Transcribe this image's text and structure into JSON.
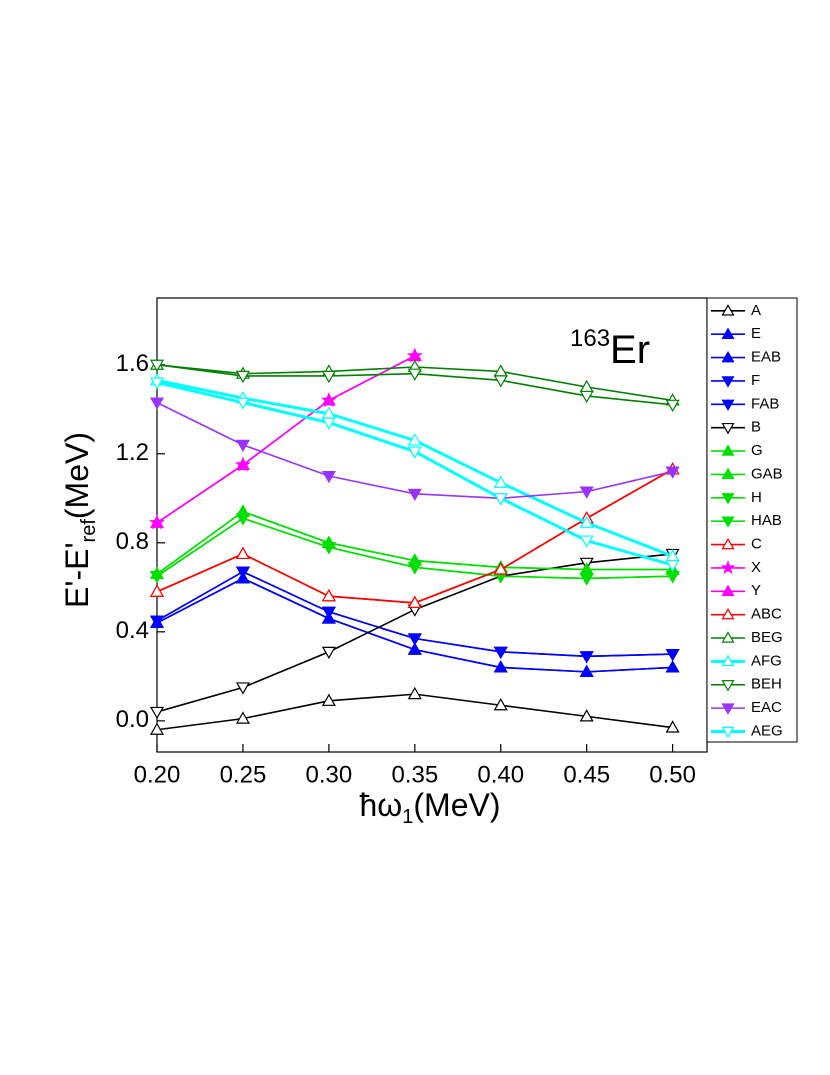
{
  "chart_data": {
    "type": "line",
    "annotation": [
      "163",
      "Er"
    ],
    "xlabel": [
      "ħω",
      "1",
      "(MeV)"
    ],
    "ylabel": [
      "E'-E'",
      "ref",
      "(MeV)"
    ],
    "x": [
      0.2,
      0.25,
      0.3,
      0.35,
      0.4,
      0.45,
      0.5
    ],
    "xlim": [
      0.2,
      0.52
    ],
    "ylim": [
      -0.14,
      1.9
    ],
    "xticks": [
      {
        "value": 0.2,
        "label": "0.20"
      },
      0.25,
      {
        "value": 0.3,
        "label": "0.30"
      },
      0.35,
      {
        "value": 0.4,
        "label": "0.40"
      },
      0.45,
      {
        "value": 0.5,
        "label": "0.50"
      }
    ],
    "yticks": [
      {
        "value": 0,
        "label": "0.0"
      },
      0.4,
      0.8,
      1.2,
      1.6
    ],
    "legend": "right",
    "series": [
      {
        "name": "A",
        "color": "#000000",
        "marker": "up-open",
        "values": [
          -0.04,
          0.01,
          0.09,
          0.12,
          0.07,
          0.02,
          -0.03
        ]
      },
      {
        "name": "E",
        "color": "#0000ff",
        "marker": "up",
        "values": [
          0.44,
          0.64,
          0.46,
          0.32,
          0.24,
          0.22,
          0.24
        ]
      },
      {
        "name": "EAB",
        "color": "#0000ff",
        "marker": "up",
        "values": [
          0.44,
          0.64,
          0.46,
          0.32,
          0.24,
          0.22,
          0.24
        ]
      },
      {
        "name": "F",
        "color": "#0000ff",
        "marker": "down",
        "values": [
          0.45,
          0.67,
          0.49,
          0.37,
          0.31,
          0.29,
          0.3
        ]
      },
      {
        "name": "FAB",
        "color": "#0000ff",
        "marker": "down",
        "values": [
          0.45,
          0.67,
          0.49,
          0.37,
          0.31,
          0.29,
          0.3
        ]
      },
      {
        "name": "B",
        "color": "#000000",
        "marker": "down-open",
        "values": [
          0.04,
          0.15,
          0.31,
          0.5,
          0.65,
          0.71,
          0.75
        ]
      },
      {
        "name": "G",
        "color": "#00e000",
        "marker": "up",
        "values": [
          0.66,
          0.94,
          0.8,
          0.72,
          0.69,
          0.68,
          0.68
        ]
      },
      {
        "name": "GAB",
        "color": "#00e000",
        "marker": "up",
        "values": [
          0.66,
          0.94,
          0.8,
          0.72,
          0.69,
          0.68,
          0.68
        ]
      },
      {
        "name": "H",
        "color": "#00e000",
        "marker": "down",
        "values": [
          0.65,
          0.91,
          0.78,
          0.69,
          0.65,
          0.64,
          0.65
        ]
      },
      {
        "name": "HAB",
        "color": "#00e000",
        "marker": "down",
        "values": [
          0.65,
          0.91,
          0.78,
          0.69,
          0.65,
          0.64,
          0.65
        ]
      },
      {
        "name": "C",
        "color": "#ff0000",
        "marker": "up-open",
        "values": [
          0.58,
          0.75,
          0.56,
          0.53,
          0.68,
          0.91,
          1.13
        ]
      },
      {
        "name": "X",
        "color": "#ff00ff",
        "marker": "star",
        "values": [
          0.89,
          1.15,
          1.44,
          1.64,
          null,
          null,
          null
        ]
      },
      {
        "name": "Y",
        "color": "#ff00ff",
        "marker": "up",
        "values": [
          0.89,
          1.15,
          1.44,
          1.64,
          null,
          null,
          null
        ]
      },
      {
        "name": "ABC",
        "color": "#ff0000",
        "marker": "up-open",
        "values": [
          0.58,
          0.75,
          0.56,
          0.53,
          0.68,
          0.91,
          1.13
        ]
      },
      {
        "name": "BEG",
        "color": "#008000",
        "marker": "up-open",
        "values": [
          1.6,
          1.56,
          1.57,
          1.59,
          1.57,
          1.5,
          1.44
        ]
      },
      {
        "name": "AFG",
        "color": "#00ffff",
        "marker": "up-open",
        "values": [
          1.53,
          1.45,
          1.38,
          1.26,
          1.07,
          0.89,
          0.74
        ]
      },
      {
        "name": "BEH",
        "color": "#008000",
        "marker": "down-open",
        "values": [
          1.6,
          1.55,
          1.55,
          1.56,
          1.53,
          1.46,
          1.42
        ]
      },
      {
        "name": "EAC",
        "color": "#9933ff",
        "marker": "down",
        "values": [
          1.43,
          1.24,
          1.1,
          1.02,
          1.0,
          1.03,
          1.12
        ]
      },
      {
        "name": "AEG",
        "color": "#00ffff",
        "marker": "down-open",
        "values": [
          1.52,
          1.43,
          1.34,
          1.21,
          1.0,
          0.81,
          0.7
        ]
      }
    ]
  }
}
